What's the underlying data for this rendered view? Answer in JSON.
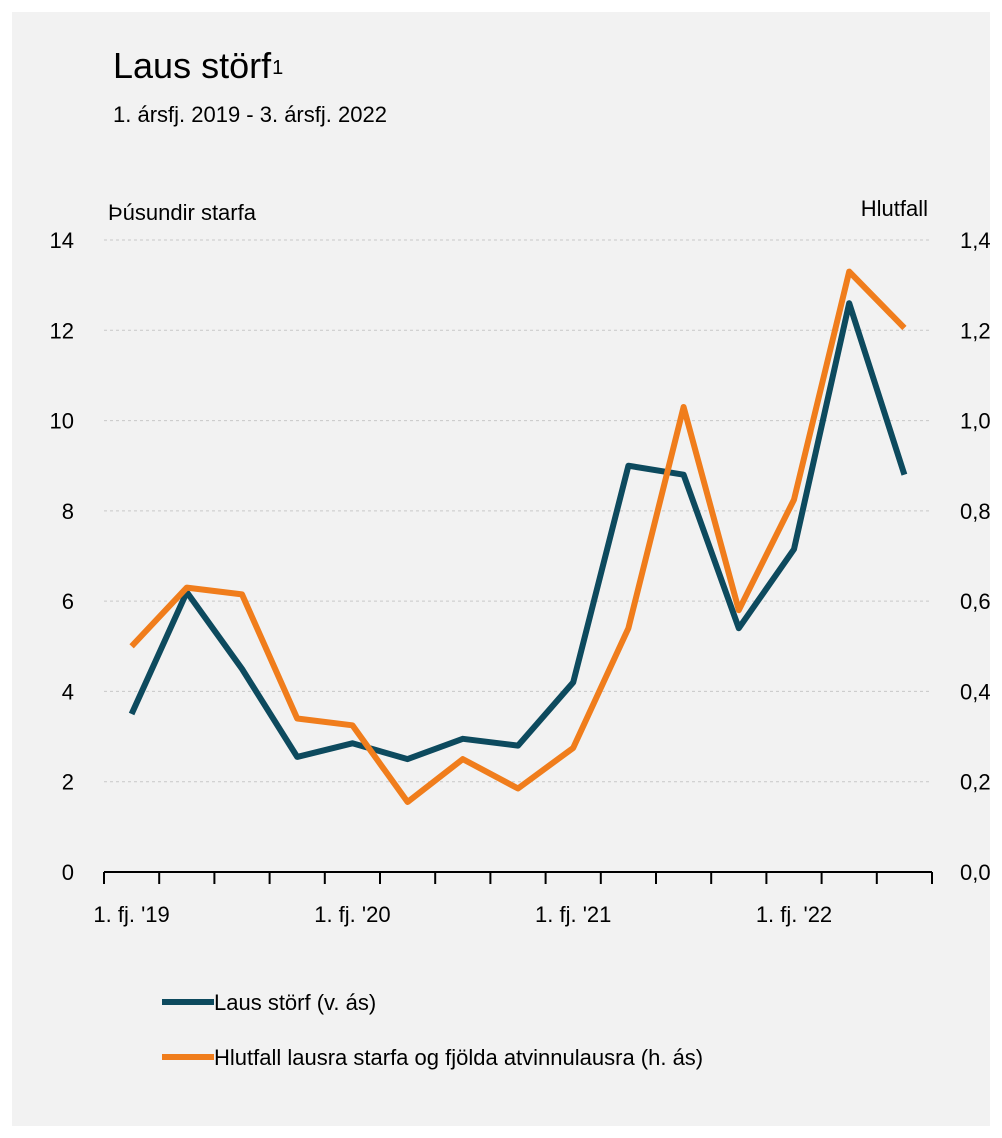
{
  "header": {
    "title": "Laus störf",
    "title_superscript": "1",
    "subtitle": "1. ársfj. 2019 - 3. ársfj. 2022"
  },
  "chart_data": {
    "type": "line",
    "left_axis_label": "Þúsundir starfa",
    "right_axis_label": "Hlutfall",
    "left_ylim": [
      0,
      14
    ],
    "right_ylim": [
      0,
      1.4
    ],
    "left_ticks": [
      "0",
      "2",
      "4",
      "6",
      "8",
      "10",
      "12",
      "14"
    ],
    "right_ticks": [
      "0,0",
      "0,2",
      "0,4",
      "0,6",
      "0,8",
      "1,0",
      "1,2",
      "1,4"
    ],
    "x_tick_labels": [
      "1. fj. '19",
      "1. fj. '20",
      "1. fj. '21",
      "1. fj. '22"
    ],
    "quarters": [
      "Q1 2019",
      "Q2 2019",
      "Q3 2019",
      "Q4 2019",
      "Q1 2020",
      "Q2 2020",
      "Q3 2020",
      "Q4 2020",
      "Q1 2021",
      "Q2 2021",
      "Q3 2021",
      "Q4 2021",
      "Q1 2022",
      "Q2 2022",
      "Q3 2022"
    ],
    "grid": true,
    "legend_position": "bottom",
    "series": [
      {
        "name": "Laus störf (v. ás)",
        "axis": "left",
        "color": "#0d4a5e",
        "values": [
          3.5,
          6.2,
          4.5,
          2.55,
          2.85,
          2.5,
          2.95,
          2.8,
          4.2,
          9.0,
          8.8,
          5.4,
          7.15,
          12.6,
          8.8
        ]
      },
      {
        "name": "Hlutfall lausra starfa og fjölda atvinnulausra (h. ás)",
        "axis": "right",
        "color": "#f07d1c",
        "values": [
          0.5,
          0.63,
          0.615,
          0.34,
          0.325,
          0.155,
          0.25,
          0.185,
          0.275,
          0.54,
          1.03,
          0.58,
          0.825,
          1.33,
          1.205
        ]
      }
    ]
  }
}
